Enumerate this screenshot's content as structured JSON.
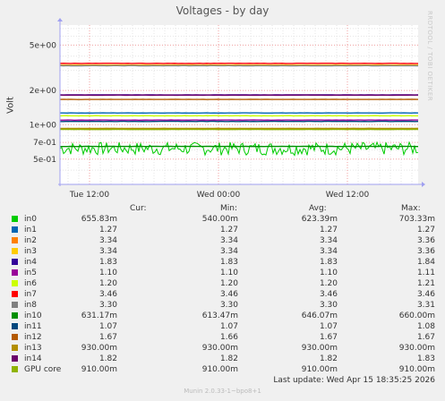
{
  "colors": {
    "background": "#f0f0f0",
    "plot_bg": "#ffffff",
    "grid_major": "#f0a0a0",
    "grid_minor": "#e4e4e4",
    "axis": "#a0a0f0"
  },
  "header": {
    "title": "Voltages - by day",
    "watermark": "RRDTOOL / TOBI OETIKER"
  },
  "legend_header": {
    "cur": "Cur:",
    "min": "Min:",
    "avg": "Avg:",
    "max": "Max:"
  },
  "last_update": "Last update: Wed Apr 15 18:35:25 2026",
  "footer": "Munin 2.0.33-1~bpo8+1",
  "chart_data": {
    "type": "line",
    "title": "Voltages - by day",
    "ylabel": "Volt",
    "y_scale": "log",
    "ylim": [
      0.3,
      7.5
    ],
    "y_ticks": [
      {
        "value": 5,
        "label": "5e+00"
      },
      {
        "value": 2,
        "label": "2e+00"
      },
      {
        "value": 1,
        "label": "1e+00"
      },
      {
        "value": 0.7,
        "label": "7e-01"
      },
      {
        "value": 0.5,
        "label": "5e-01"
      }
    ],
    "x_ticks": [
      "Tue 12:00",
      "Wed 00:00",
      "Wed 12:00"
    ],
    "grid": true,
    "series": [
      {
        "name": "in0",
        "color": "#00cc00",
        "cur": "655.83m",
        "min": "540.00m",
        "avg": "623.39m",
        "max": "703.33m",
        "level": 0.6234,
        "lo": 0.54,
        "hi": 0.7033,
        "noisy": true
      },
      {
        "name": "in1",
        "color": "#0066b3",
        "cur": "1.27",
        "min": "1.27",
        "avg": "1.27",
        "max": "1.27",
        "level": 1.27
      },
      {
        "name": "in2",
        "color": "#ff8000",
        "cur": "3.34",
        "min": "3.34",
        "avg": "3.34",
        "max": "3.36",
        "level": 3.34
      },
      {
        "name": "in3",
        "color": "#ffcc00",
        "cur": "3.34",
        "min": "3.34",
        "avg": "3.34",
        "max": "3.36",
        "level": 3.34
      },
      {
        "name": "in4",
        "color": "#330099",
        "cur": "1.83",
        "min": "1.83",
        "avg": "1.83",
        "max": "1.84",
        "level": 1.83
      },
      {
        "name": "in5",
        "color": "#990099",
        "cur": "1.10",
        "min": "1.10",
        "avg": "1.10",
        "max": "1.11",
        "level": 1.1
      },
      {
        "name": "in6",
        "color": "#ccff00",
        "cur": "1.20",
        "min": "1.20",
        "avg": "1.20",
        "max": "1.21",
        "level": 1.2
      },
      {
        "name": "in7",
        "color": "#ff0000",
        "cur": "3.46",
        "min": "3.46",
        "avg": "3.46",
        "max": "3.46",
        "level": 3.46
      },
      {
        "name": "in8",
        "color": "#808080",
        "cur": "3.30",
        "min": "3.30",
        "avg": "3.30",
        "max": "3.31",
        "level": 3.3
      },
      {
        "name": "in10",
        "color": "#008f00",
        "cur": "631.17m",
        "min": "613.47m",
        "avg": "646.07m",
        "max": "660.00m",
        "level": 0.646
      },
      {
        "name": "in11",
        "color": "#00487d",
        "cur": "1.07",
        "min": "1.07",
        "avg": "1.07",
        "max": "1.08",
        "level": 1.07
      },
      {
        "name": "in12",
        "color": "#b35a00",
        "cur": "1.67",
        "min": "1.66",
        "avg": "1.67",
        "max": "1.67",
        "level": 1.67
      },
      {
        "name": "in13",
        "color": "#b38f00",
        "cur": "930.00m",
        "min": "930.00m",
        "avg": "930.00m",
        "max": "930.00m",
        "level": 0.93
      },
      {
        "name": "in14",
        "color": "#6b006b",
        "cur": "1.82",
        "min": "1.82",
        "avg": "1.82",
        "max": "1.83",
        "level": 1.82
      },
      {
        "name": "GPU core",
        "color": "#8fb300",
        "cur": "910.00m",
        "min": "910.00m",
        "avg": "910.00m",
        "max": "910.00m",
        "level": 0.91
      }
    ]
  }
}
